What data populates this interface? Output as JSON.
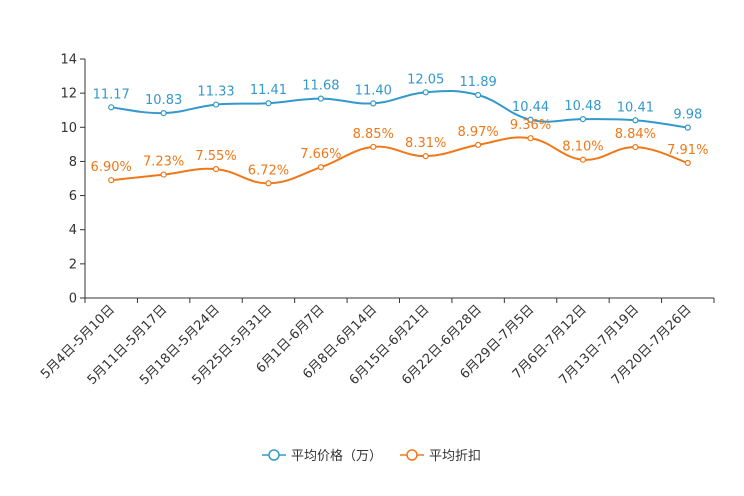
{
  "chart_data": {
    "type": "line",
    "title": "",
    "xlabel": "",
    "ylabel": "",
    "ylim": [
      0,
      14
    ],
    "yticks": [
      0,
      2,
      4,
      6,
      8,
      10,
      12,
      14
    ],
    "grid": false,
    "legend_position": "bottom-center",
    "categories": [
      "5月4日-5月10日",
      "5月11日-5月17日",
      "5月18日-5月24日",
      "5月25日-5月31日",
      "6月1日-6月7日",
      "6月8日-6月14日",
      "6月15日-6月21日",
      "6月22日-6月28日",
      "6月29日-7月5日",
      "7月6日-7月12日",
      "7月13日-7月19日",
      "7月20日-7月26日"
    ],
    "series": [
      {
        "name": "平均价格（万）",
        "color": "#3398cc",
        "values": [
          11.17,
          10.83,
          11.33,
          11.41,
          11.68,
          11.4,
          12.05,
          11.89,
          10.44,
          10.48,
          10.41,
          9.98
        ],
        "labels": [
          "11.17",
          "10.83",
          "11.33",
          "11.41",
          "11.68",
          "11.40",
          "12.05",
          "11.89",
          "10.44",
          "10.48",
          "10.41",
          "9.98"
        ]
      },
      {
        "name": "平均折扣",
        "color": "#f07818",
        "values": [
          6.9,
          7.23,
          7.55,
          6.72,
          7.66,
          8.85,
          8.31,
          8.97,
          9.36,
          8.1,
          8.84,
          7.91
        ],
        "labels": [
          "6.90%",
          "7.23%",
          "7.55%",
          "6.72%",
          "7.66%",
          "8.85%",
          "8.31%",
          "8.97%",
          "9.36%",
          "8.10%",
          "8.84%",
          "7.91%"
        ]
      }
    ]
  }
}
